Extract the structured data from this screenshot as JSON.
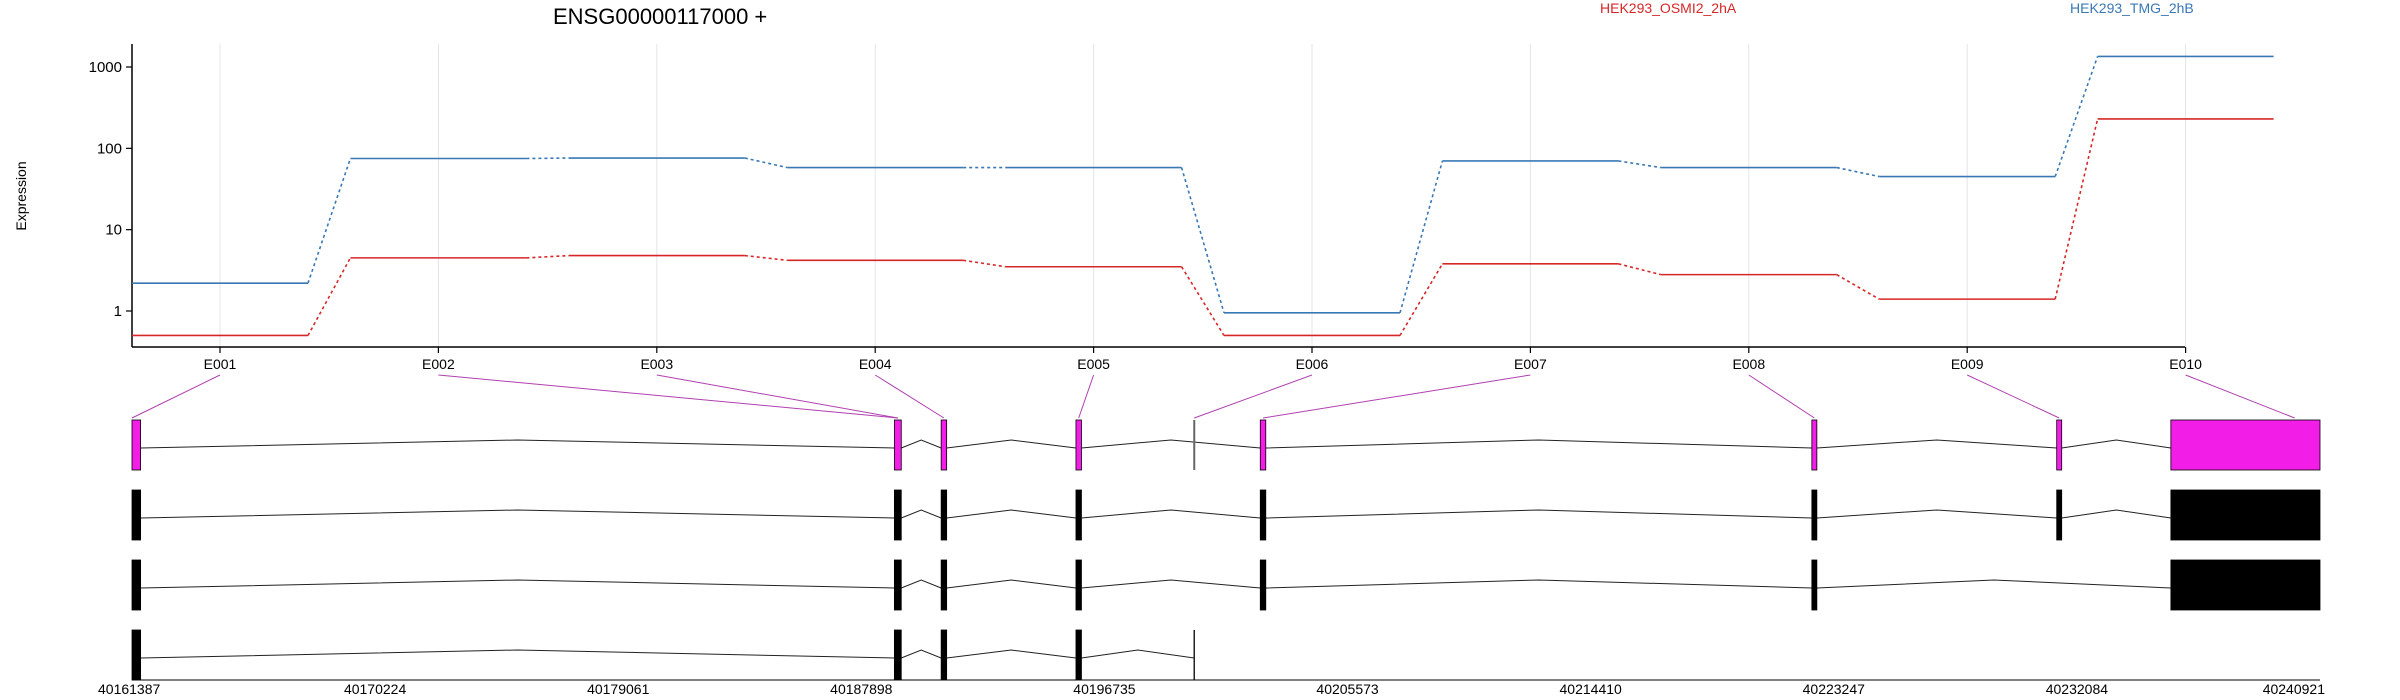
{
  "chart_data": {
    "type": "line",
    "title": "ENSG00000117000 +",
    "ylabel": "Expression",
    "y_scale": "log",
    "yticks": [
      1,
      10,
      100,
      1000
    ],
    "exons": [
      "E001",
      "E002",
      "E003",
      "E004",
      "E005",
      "E006",
      "E007",
      "E008",
      "E009",
      "E010"
    ],
    "series": [
      {
        "name": "HEK293_OSMI2_2hA",
        "color": "#d62728",
        "values": [
          0.5,
          4.5,
          4.8,
          4.2,
          3.5,
          0.5,
          3.8,
          2.8,
          1.4,
          230
        ]
      },
      {
        "name": "HEK293_TMG_2hB",
        "color": "#3a78b5",
        "values": [
          2.2,
          75,
          76,
          58,
          58,
          0.95,
          70,
          58,
          45,
          1350
        ]
      }
    ],
    "genomic_ticks": [
      "40161387",
      "40170224",
      "40179061",
      "40187898",
      "40196735",
      "40205573",
      "40214410",
      "40223247",
      "40232084",
      "40240921"
    ],
    "genomic_range": [
      40161387,
      40240921
    ],
    "exon_highlight_color": "#f21ee8",
    "transcript_color": "#000000",
    "grid": true
  }
}
